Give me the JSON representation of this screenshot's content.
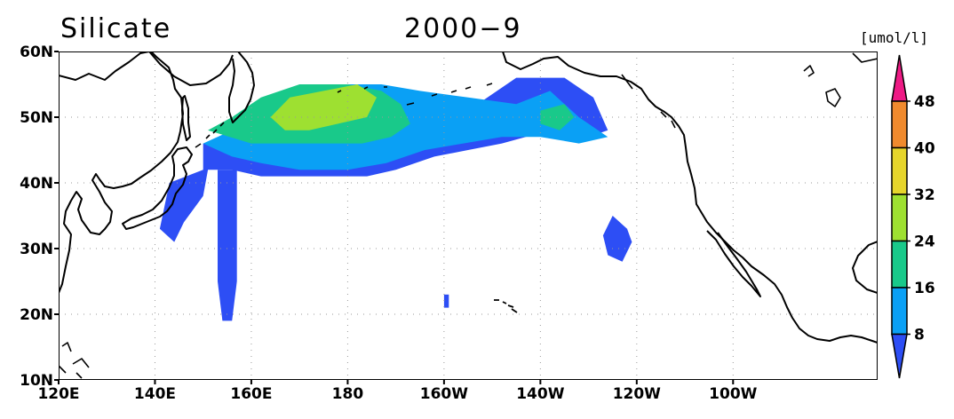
{
  "title": {
    "variable": "Silicate",
    "period": "2000−9"
  },
  "map": {
    "lon_range": [
      120,
      290
    ],
    "lat_range": [
      10,
      60
    ],
    "lon_tick_labels": [
      "120E",
      "140E",
      "160E",
      "180",
      "160W",
      "140W",
      "120W",
      "100W"
    ],
    "lon_tick_values": [
      120,
      140,
      160,
      180,
      200,
      220,
      240,
      260
    ],
    "lat_tick_labels": [
      "10N",
      "20N",
      "30N",
      "40N",
      "50N",
      "60N"
    ],
    "lat_tick_values": [
      10,
      20,
      30,
      40,
      50,
      60
    ],
    "grid": "dotted",
    "coastline_color": "#000000",
    "ocean_color": "#ffffff"
  },
  "colorbar": {
    "unit": "[umol/l]",
    "labels": [
      "8",
      "16",
      "24",
      "32",
      "40",
      "48"
    ],
    "colors": [
      "#2d4ef5",
      "#0aa0f5",
      "#19c98a",
      "#9ee031",
      "#e6d52c",
      "#f08a2e",
      "#ee1a85"
    ],
    "placement": "right"
  },
  "chart_data": {
    "type": "heatmap",
    "title": "Silicate 2000−9",
    "unit": "umol/l",
    "levels": [
      8,
      16,
      24,
      32,
      40,
      48
    ],
    "regions": [
      {
        "class": "<8",
        "polygon_lonlat": [
          [
            141,
            33
          ],
          [
            143,
            40
          ],
          [
            150,
            42
          ],
          [
            150,
            46
          ],
          [
            160,
            47
          ],
          [
            168,
            46
          ],
          [
            176,
            46
          ],
          [
            183,
            45
          ],
          [
            190,
            46
          ],
          [
            196,
            46
          ],
          [
            200,
            48
          ],
          [
            205,
            51
          ],
          [
            215,
            56
          ],
          [
            225,
            56
          ],
          [
            231,
            53
          ],
          [
            234,
            48
          ],
          [
            230,
            47
          ],
          [
            222,
            48
          ],
          [
            212,
            46
          ],
          [
            205,
            45
          ],
          [
            198,
            44
          ],
          [
            190,
            42
          ],
          [
            184,
            41
          ],
          [
            178,
            41
          ],
          [
            170,
            41
          ],
          [
            162,
            41
          ],
          [
            156,
            42
          ],
          [
            151,
            42
          ],
          [
            150,
            38
          ],
          [
            146,
            34
          ],
          [
            144,
            31
          ]
        ]
      },
      {
        "class": "<8",
        "polygon_lonlat": [
          [
            153,
            42
          ],
          [
            157,
            42
          ],
          [
            157,
            25
          ],
          [
            156,
            19
          ],
          [
            154,
            19
          ],
          [
            153,
            25
          ]
        ]
      },
      {
        "class": "<8",
        "polygon_lonlat": [
          [
            235,
            35
          ],
          [
            238,
            33
          ],
          [
            239,
            31
          ],
          [
            237,
            28
          ],
          [
            234,
            29
          ],
          [
            233,
            32
          ]
        ]
      },
      {
        "class": "<8",
        "polygon_lonlat": [
          [
            200,
            23
          ],
          [
            201,
            23
          ],
          [
            201,
            21
          ],
          [
            200,
            21
          ]
        ]
      },
      {
        "class": "8-16",
        "polygon_lonlat": [
          [
            150,
            46
          ],
          [
            156,
            48
          ],
          [
            160,
            52
          ],
          [
            168,
            54
          ],
          [
            178,
            55
          ],
          [
            187,
            55
          ],
          [
            195,
            54
          ],
          [
            205,
            53
          ],
          [
            215,
            52
          ],
          [
            222,
            54
          ],
          [
            228,
            50
          ],
          [
            234,
            47
          ],
          [
            228,
            46
          ],
          [
            220,
            47
          ],
          [
            212,
            47
          ],
          [
            204,
            46
          ],
          [
            196,
            45
          ],
          [
            188,
            43
          ],
          [
            180,
            42
          ],
          [
            170,
            42
          ],
          [
            162,
            43
          ],
          [
            156,
            44
          ]
        ]
      },
      {
        "class": "16-24",
        "polygon_lonlat": [
          [
            151,
            48
          ],
          [
            156,
            50
          ],
          [
            162,
            53
          ],
          [
            170,
            55
          ],
          [
            180,
            55
          ],
          [
            187,
            54
          ],
          [
            191,
            52
          ],
          [
            193,
            49
          ],
          [
            189,
            47
          ],
          [
            183,
            46
          ],
          [
            176,
            46
          ],
          [
            168,
            46
          ],
          [
            160,
            46
          ]
        ]
      },
      {
        "class": "16-24",
        "polygon_lonlat": [
          [
            220,
            51
          ],
          [
            225,
            52
          ],
          [
            227,
            50
          ],
          [
            224,
            48
          ],
          [
            220,
            49
          ]
        ]
      },
      {
        "class": "24-32",
        "polygon_lonlat": [
          [
            164,
            50
          ],
          [
            168,
            53
          ],
          [
            175,
            54
          ],
          [
            182,
            55
          ],
          [
            186,
            53
          ],
          [
            184,
            50
          ],
          [
            178,
            49
          ],
          [
            172,
            48
          ],
          [
            167,
            48
          ]
        ]
      }
    ]
  }
}
